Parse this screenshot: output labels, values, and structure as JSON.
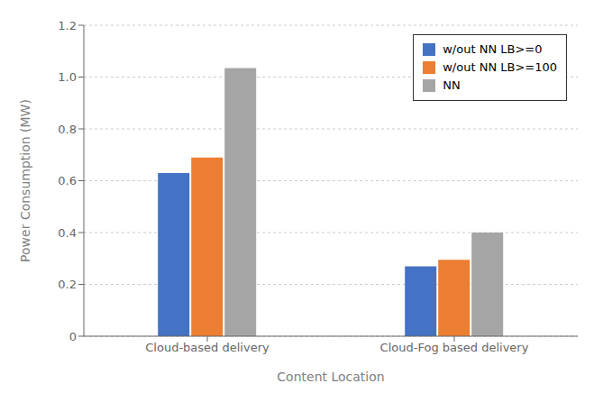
{
  "chart_data": {
    "type": "bar",
    "categories": [
      "Cloud-based delivery",
      "Cloud-Fog based delivery"
    ],
    "series": [
      {
        "name": "w/out NN LB>=0",
        "color": "#4472C4",
        "values": [
          0.63,
          0.27
        ]
      },
      {
        "name": "w/out NN LB>=100",
        "color": "#ED7D31",
        "values": [
          0.69,
          0.295
        ]
      },
      {
        "name": "NN",
        "color": "#A5A5A5",
        "values": [
          1.035,
          0.4
        ]
      }
    ],
    "xlabel": "Content Location",
    "ylabel": "Power Consumption (MW)",
    "ylim": [
      0,
      1.2
    ],
    "yticks": [
      0,
      0.2,
      0.4,
      0.6,
      0.8,
      {
        "value": 1.0,
        "label": "1.0"
      },
      1.2
    ],
    "grid": true,
    "legend": "upper right"
  }
}
